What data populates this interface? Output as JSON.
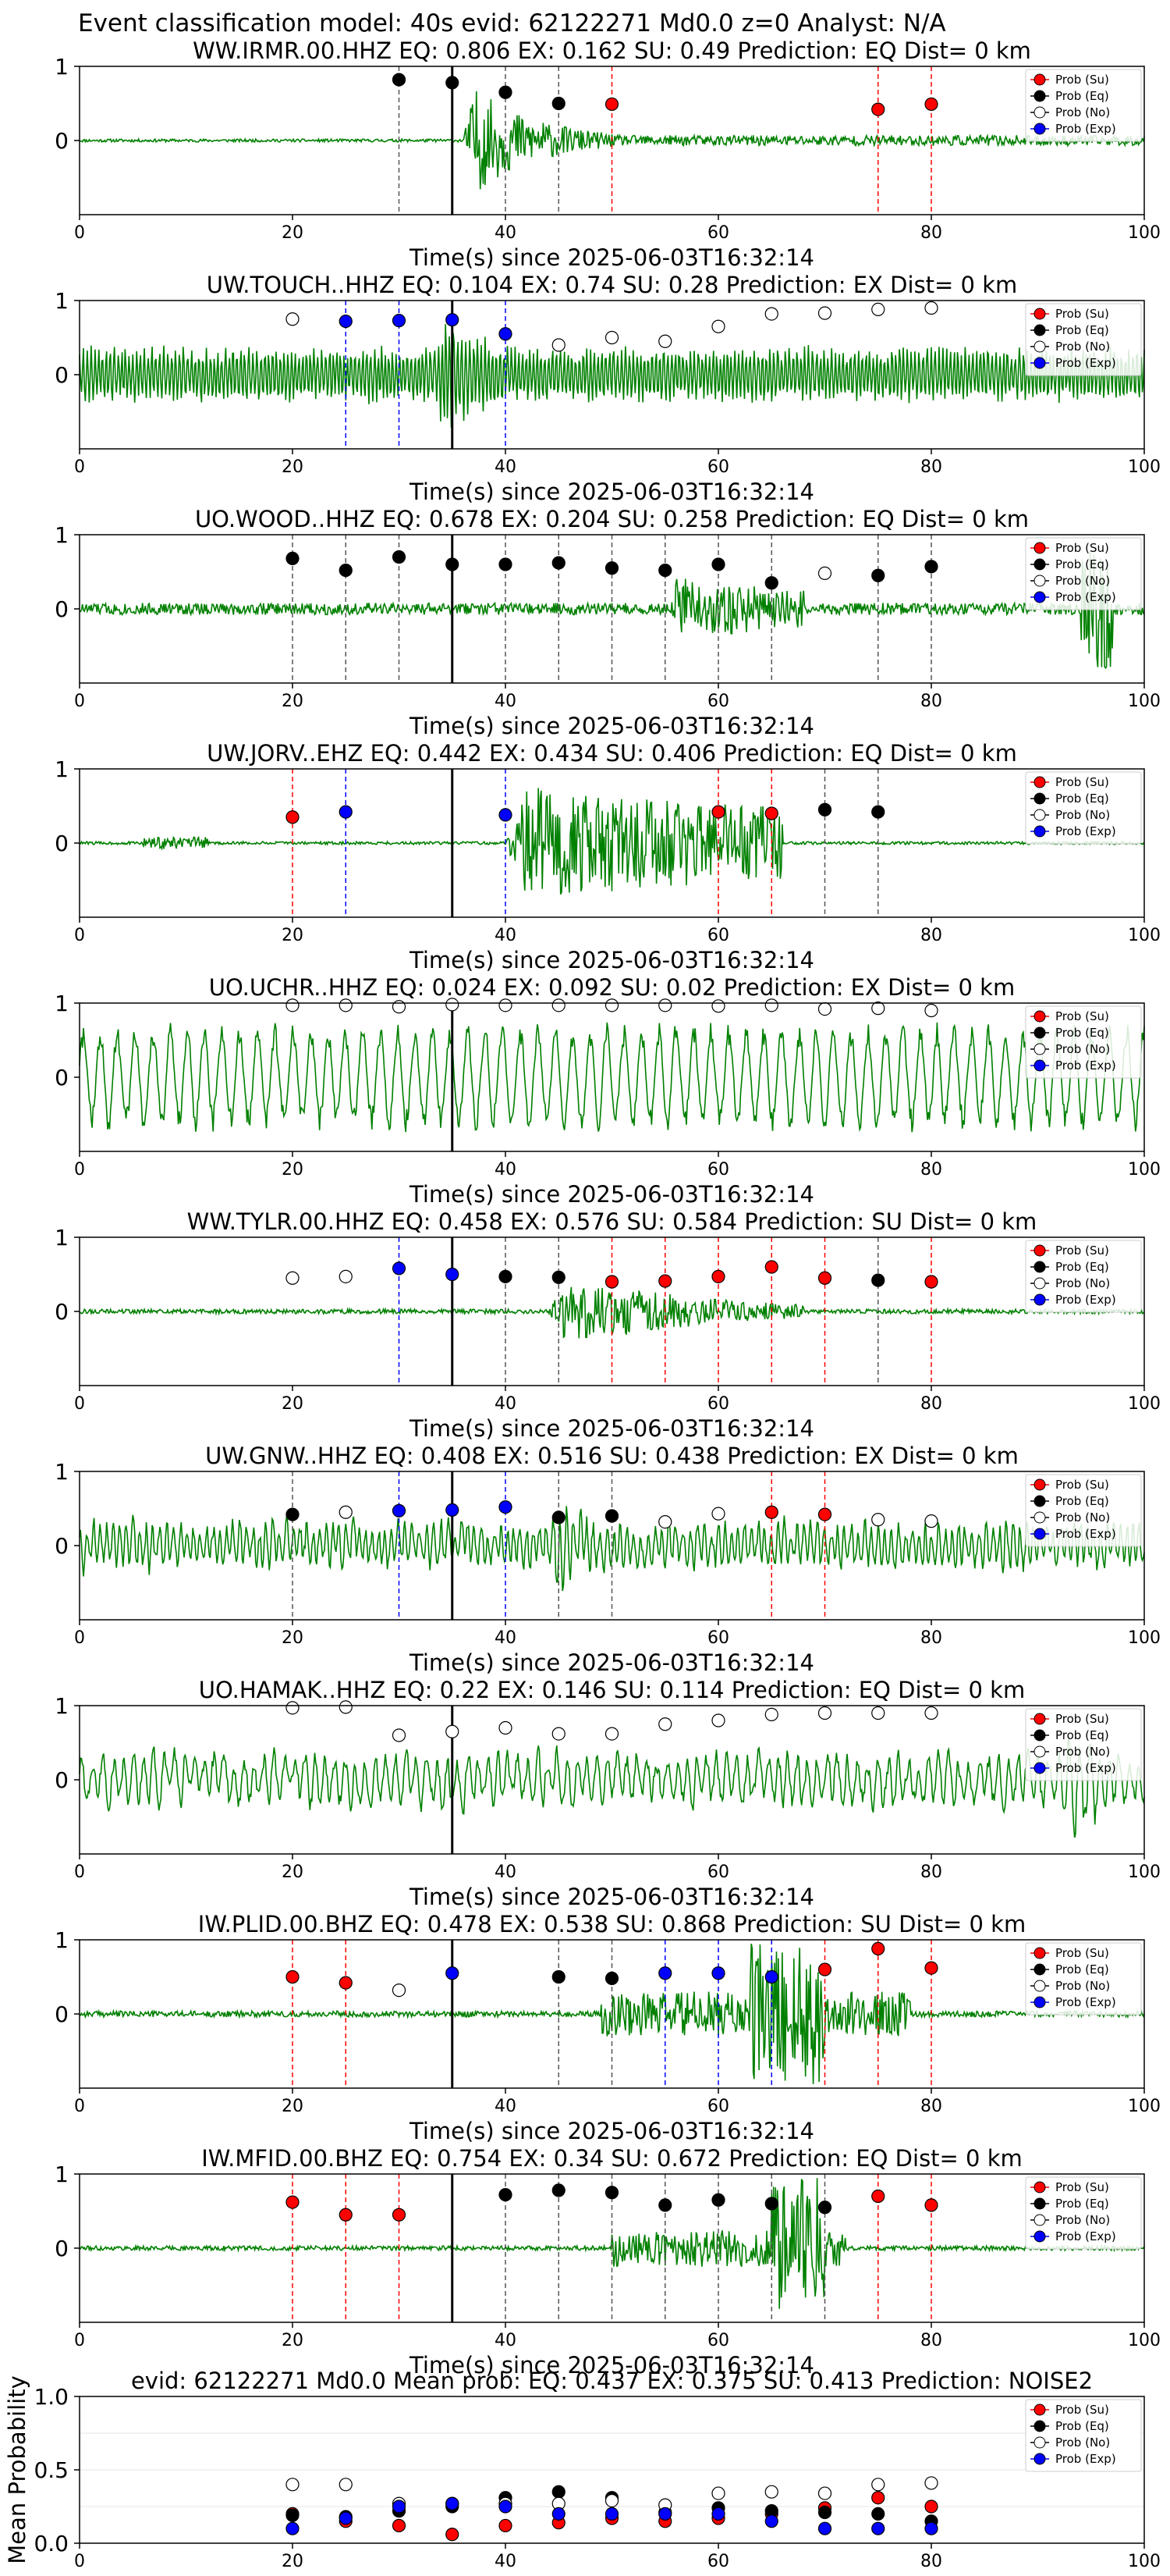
{
  "suptitle": "Event classification model: 40s evid: 62122271 Md0.0 z=0 Analyst: N/A",
  "colors": {
    "wave": "#008000",
    "su": "#ff0000",
    "eq": "#000000",
    "no": "#ffffff",
    "exp": "#0000ff",
    "su_line": "#ff0000",
    "eq_line": "#555555",
    "exp_line": "#0000ff",
    "origin_line": "#000000"
  },
  "legend": [
    "Prob (Su)",
    "Prob (Eq)",
    "Prob (No)",
    "Prob (Exp)"
  ],
  "chart_data": [
    {
      "type": "line",
      "kind": "waveform",
      "title": "WW.IRMR.00.HHZ   EQ: 0.806  EX: 0.162  SU: 0.49   Prediction: EQ    Dist= 0 km",
      "xlabel": "Time(s) since 2025-06-03T16:32:14",
      "ylabel": "",
      "xlim": [
        0,
        100
      ],
      "ylim": [
        -1,
        1
      ],
      "xticks": [
        0,
        20,
        40,
        60,
        80,
        100
      ],
      "yticks": [
        1,
        0
      ],
      "origin_time": 35,
      "waveform": {
        "seed": 11,
        "base": 0.02,
        "bursts": [
          [
            36,
            50,
            0.85,
            2.2
          ],
          [
            50,
            100,
            0.07,
            0
          ]
        ],
        "mode": "noise"
      },
      "points": [
        {
          "x": 30,
          "y": 0.82,
          "cls": "eq"
        },
        {
          "x": 35,
          "y": 0.78,
          "cls": "eq"
        },
        {
          "x": 40,
          "y": 0.65,
          "cls": "eq"
        },
        {
          "x": 45,
          "y": 0.5,
          "cls": "eq"
        },
        {
          "x": 50,
          "y": 0.49,
          "cls": "su"
        },
        {
          "x": 75,
          "y": 0.42,
          "cls": "su"
        },
        {
          "x": 80,
          "y": 0.49,
          "cls": "su"
        }
      ]
    },
    {
      "type": "line",
      "kind": "waveform",
      "title": "UW.TOUCH..HHZ   EQ: 0.104  EX: 0.74  SU: 0.28   Prediction: EX    Dist= 0 km",
      "xlabel": "Time(s) since 2025-06-03T16:32:14",
      "ylabel": "",
      "xlim": [
        0,
        100
      ],
      "ylim": [
        -1,
        1
      ],
      "xticks": [
        0,
        20,
        40,
        60,
        80,
        100
      ],
      "yticks": [
        1,
        0
      ],
      "origin_time": 35,
      "waveform": {
        "seed": 22,
        "base": 0.4,
        "bursts": [
          [
            33,
            44,
            0.95,
            1.2
          ]
        ],
        "mode": "osc",
        "freq": 1.6
      },
      "points": [
        {
          "x": 20,
          "y": 0.75,
          "cls": "no"
        },
        {
          "x": 25,
          "y": 0.72,
          "cls": "exp"
        },
        {
          "x": 30,
          "y": 0.73,
          "cls": "exp"
        },
        {
          "x": 35,
          "y": 0.74,
          "cls": "exp"
        },
        {
          "x": 40,
          "y": 0.55,
          "cls": "exp"
        },
        {
          "x": 45,
          "y": 0.4,
          "cls": "no"
        },
        {
          "x": 50,
          "y": 0.5,
          "cls": "no"
        },
        {
          "x": 55,
          "y": 0.45,
          "cls": "no"
        },
        {
          "x": 60,
          "y": 0.65,
          "cls": "no"
        },
        {
          "x": 65,
          "y": 0.82,
          "cls": "no"
        },
        {
          "x": 70,
          "y": 0.83,
          "cls": "no"
        },
        {
          "x": 75,
          "y": 0.88,
          "cls": "no"
        },
        {
          "x": 80,
          "y": 0.9,
          "cls": "no"
        }
      ]
    },
    {
      "type": "line",
      "kind": "waveform",
      "title": "UO.WOOD..HHZ   EQ: 0.678  EX: 0.204  SU: 0.258   Prediction: EQ    Dist= 0 km",
      "xlabel": "Time(s) since 2025-06-03T16:32:14",
      "ylabel": "",
      "xlim": [
        0,
        100
      ],
      "ylim": [
        -1,
        1
      ],
      "xticks": [
        0,
        20,
        40,
        60,
        80,
        100
      ],
      "yticks": [
        1,
        0
      ],
      "origin_time": 35,
      "waveform": {
        "seed": 33,
        "base": 0.08,
        "bursts": [
          [
            55,
            68,
            0.45,
            0.6
          ],
          [
            94,
            97,
            0.8,
            0
          ]
        ],
        "mode": "noise"
      },
      "points": [
        {
          "x": 20,
          "y": 0.68,
          "cls": "eq"
        },
        {
          "x": 25,
          "y": 0.52,
          "cls": "eq"
        },
        {
          "x": 30,
          "y": 0.7,
          "cls": "eq"
        },
        {
          "x": 35,
          "y": 0.6,
          "cls": "eq"
        },
        {
          "x": 40,
          "y": 0.6,
          "cls": "eq"
        },
        {
          "x": 45,
          "y": 0.62,
          "cls": "eq"
        },
        {
          "x": 50,
          "y": 0.55,
          "cls": "eq"
        },
        {
          "x": 55,
          "y": 0.52,
          "cls": "eq"
        },
        {
          "x": 60,
          "y": 0.6,
          "cls": "eq"
        },
        {
          "x": 65,
          "y": 0.35,
          "cls": "eq"
        },
        {
          "x": 70,
          "y": 0.48,
          "cls": "no"
        },
        {
          "x": 75,
          "y": 0.45,
          "cls": "eq"
        },
        {
          "x": 80,
          "y": 0.57,
          "cls": "eq"
        }
      ]
    },
    {
      "type": "line",
      "kind": "waveform",
      "title": "UW.JORV..EHZ   EQ: 0.442  EX: 0.434  SU: 0.406   Prediction: EQ    Dist= 0 km",
      "xlabel": "Time(s) since 2025-06-03T16:32:14",
      "ylabel": "",
      "xlim": [
        0,
        100
      ],
      "ylim": [
        -1,
        1
      ],
      "xticks": [
        0,
        20,
        40,
        60,
        80,
        100
      ],
      "yticks": [
        1,
        0
      ],
      "origin_time": 35,
      "waveform": {
        "seed": 44,
        "base": 0.02,
        "bursts": [
          [
            6,
            12,
            0.08,
            0
          ],
          [
            40,
            66,
            0.8,
            0.5
          ]
        ],
        "mode": "noise"
      },
      "points": [
        {
          "x": 20,
          "y": 0.35,
          "cls": "su"
        },
        {
          "x": 25,
          "y": 0.42,
          "cls": "exp"
        },
        {
          "x": 40,
          "y": 0.38,
          "cls": "exp"
        },
        {
          "x": 60,
          "y": 0.42,
          "cls": "su"
        },
        {
          "x": 65,
          "y": 0.4,
          "cls": "su"
        },
        {
          "x": 70,
          "y": 0.45,
          "cls": "eq"
        },
        {
          "x": 75,
          "y": 0.42,
          "cls": "eq"
        }
      ]
    },
    {
      "type": "line",
      "kind": "waveform",
      "title": "UO.UCHR..HHZ   EQ: 0.024  EX: 0.092  SU: 0.02   Prediction: EX    Dist= 0 km",
      "xlabel": "Time(s) since 2025-06-03T16:32:14",
      "ylabel": "",
      "xlim": [
        0,
        100
      ],
      "ylim": [
        -1,
        1
      ],
      "xticks": [
        0,
        20,
        40,
        60,
        80,
        100
      ],
      "yticks": [
        1,
        0
      ],
      "origin_time": 35,
      "waveform": {
        "seed": 55,
        "base": 0.75,
        "bursts": [],
        "mode": "osc",
        "freq": 0.35
      },
      "points": [
        {
          "x": 20,
          "y": 0.97,
          "cls": "no"
        },
        {
          "x": 25,
          "y": 0.97,
          "cls": "no"
        },
        {
          "x": 30,
          "y": 0.95,
          "cls": "no"
        },
        {
          "x": 35,
          "y": 0.98,
          "cls": "no"
        },
        {
          "x": 40,
          "y": 0.97,
          "cls": "no"
        },
        {
          "x": 45,
          "y": 0.97,
          "cls": "no"
        },
        {
          "x": 50,
          "y": 0.97,
          "cls": "no"
        },
        {
          "x": 55,
          "y": 0.97,
          "cls": "no"
        },
        {
          "x": 60,
          "y": 0.96,
          "cls": "no"
        },
        {
          "x": 65,
          "y": 0.97,
          "cls": "no"
        },
        {
          "x": 70,
          "y": 0.92,
          "cls": "no"
        },
        {
          "x": 75,
          "y": 0.93,
          "cls": "no"
        },
        {
          "x": 80,
          "y": 0.9,
          "cls": "no"
        }
      ]
    },
    {
      "type": "line",
      "kind": "waveform",
      "title": "WW.TYLR.00.HHZ   EQ: 0.458  EX: 0.576  SU: 0.584   Prediction: SU    Dist= 0 km",
      "xlabel": "Time(s) since 2025-06-03T16:32:14",
      "ylabel": "",
      "xlim": [
        0,
        100
      ],
      "ylim": [
        -1,
        1
      ],
      "xticks": [
        0,
        20,
        40,
        60,
        80,
        100
      ],
      "yticks": [
        1,
        0
      ],
      "origin_time": 35,
      "waveform": {
        "seed": 66,
        "base": 0.03,
        "bursts": [
          [
            44,
            68,
            0.55,
            1.8
          ]
        ],
        "mode": "noise"
      },
      "points": [
        {
          "x": 20,
          "y": 0.45,
          "cls": "no"
        },
        {
          "x": 25,
          "y": 0.47,
          "cls": "no"
        },
        {
          "x": 30,
          "y": 0.58,
          "cls": "exp"
        },
        {
          "x": 35,
          "y": 0.5,
          "cls": "exp"
        },
        {
          "x": 40,
          "y": 0.47,
          "cls": "eq"
        },
        {
          "x": 45,
          "y": 0.46,
          "cls": "eq"
        },
        {
          "x": 50,
          "y": 0.4,
          "cls": "su"
        },
        {
          "x": 55,
          "y": 0.41,
          "cls": "su"
        },
        {
          "x": 60,
          "y": 0.47,
          "cls": "su"
        },
        {
          "x": 65,
          "y": 0.6,
          "cls": "su"
        },
        {
          "x": 70,
          "y": 0.45,
          "cls": "su"
        },
        {
          "x": 75,
          "y": 0.42,
          "cls": "eq"
        },
        {
          "x": 80,
          "y": 0.4,
          "cls": "su"
        }
      ]
    },
    {
      "type": "line",
      "kind": "waveform",
      "title": "UW.GNW..HHZ   EQ: 0.408  EX: 0.516  SU: 0.438   Prediction: EX    Dist= 0 km",
      "xlabel": "Time(s) since 2025-06-03T16:32:14",
      "ylabel": "",
      "xlim": [
        0,
        100
      ],
      "ylim": [
        -1,
        1
      ],
      "xticks": [
        0,
        20,
        40,
        60,
        80,
        100
      ],
      "yticks": [
        1,
        0
      ],
      "origin_time": 35,
      "waveform": {
        "seed": 77,
        "base": 0.4,
        "bursts": [
          [
            44,
            50,
            0.85,
            1.0
          ]
        ],
        "mode": "mix",
        "freq": 0.9
      },
      "points": [
        {
          "x": 20,
          "y": 0.42,
          "cls": "eq"
        },
        {
          "x": 25,
          "y": 0.45,
          "cls": "no"
        },
        {
          "x": 30,
          "y": 0.47,
          "cls": "exp"
        },
        {
          "x": 35,
          "y": 0.48,
          "cls": "exp"
        },
        {
          "x": 40,
          "y": 0.52,
          "cls": "exp"
        },
        {
          "x": 45,
          "y": 0.38,
          "cls": "eq"
        },
        {
          "x": 50,
          "y": 0.4,
          "cls": "eq"
        },
        {
          "x": 55,
          "y": 0.32,
          "cls": "no"
        },
        {
          "x": 60,
          "y": 0.43,
          "cls": "no"
        },
        {
          "x": 65,
          "y": 0.45,
          "cls": "su"
        },
        {
          "x": 70,
          "y": 0.42,
          "cls": "su"
        },
        {
          "x": 75,
          "y": 0.35,
          "cls": "no"
        },
        {
          "x": 80,
          "y": 0.33,
          "cls": "no"
        }
      ]
    },
    {
      "type": "line",
      "kind": "waveform",
      "title": "UO.HAMAK..HHZ   EQ: 0.22  EX: 0.146  SU: 0.114   Prediction: EQ    Dist= 0 km",
      "xlabel": "Time(s) since 2025-06-03T16:32:14",
      "ylabel": "",
      "xlim": [
        0,
        100
      ],
      "ylim": [
        -1,
        1
      ],
      "xticks": [
        0,
        20,
        40,
        60,
        80,
        100
      ],
      "yticks": [
        1,
        0
      ],
      "origin_time": 35,
      "waveform": {
        "seed": 88,
        "base": 0.45,
        "bursts": [
          [
            92,
            96,
            0.9,
            0
          ]
        ],
        "mode": "mix",
        "freq": 0.6
      },
      "points": [
        {
          "x": 20,
          "y": 0.97,
          "cls": "no"
        },
        {
          "x": 25,
          "y": 0.98,
          "cls": "no"
        },
        {
          "x": 30,
          "y": 0.6,
          "cls": "no"
        },
        {
          "x": 35,
          "y": 0.65,
          "cls": "no"
        },
        {
          "x": 40,
          "y": 0.7,
          "cls": "no"
        },
        {
          "x": 45,
          "y": 0.62,
          "cls": "no"
        },
        {
          "x": 50,
          "y": 0.62,
          "cls": "no"
        },
        {
          "x": 55,
          "y": 0.75,
          "cls": "no"
        },
        {
          "x": 60,
          "y": 0.8,
          "cls": "no"
        },
        {
          "x": 65,
          "y": 0.88,
          "cls": "no"
        },
        {
          "x": 70,
          "y": 0.9,
          "cls": "no"
        },
        {
          "x": 75,
          "y": 0.9,
          "cls": "no"
        },
        {
          "x": 80,
          "y": 0.9,
          "cls": "no"
        }
      ]
    },
    {
      "type": "line",
      "kind": "waveform",
      "title": "IW.PLID.00.BHZ   EQ: 0.478  EX: 0.538  SU: 0.868   Prediction: SU    Dist= 0 km",
      "xlabel": "Time(s) since 2025-06-03T16:32:14",
      "ylabel": "",
      "xlim": [
        0,
        100
      ],
      "ylim": [
        -1,
        1
      ],
      "xticks": [
        0,
        20,
        40,
        60,
        80,
        100
      ],
      "yticks": [
        1,
        0
      ],
      "origin_time": 35,
      "waveform": {
        "seed": 99,
        "base": 0.04,
        "bursts": [
          [
            49,
            78,
            0.3,
            0
          ],
          [
            63,
            70,
            0.95,
            0
          ]
        ],
        "mode": "noise"
      },
      "points": [
        {
          "x": 20,
          "y": 0.5,
          "cls": "su"
        },
        {
          "x": 25,
          "y": 0.42,
          "cls": "su"
        },
        {
          "x": 30,
          "y": 0.32,
          "cls": "no"
        },
        {
          "x": 35,
          "y": 0.55,
          "cls": "exp"
        },
        {
          "x": 45,
          "y": 0.5,
          "cls": "eq"
        },
        {
          "x": 50,
          "y": 0.48,
          "cls": "eq"
        },
        {
          "x": 55,
          "y": 0.55,
          "cls": "exp"
        },
        {
          "x": 60,
          "y": 0.55,
          "cls": "exp"
        },
        {
          "x": 65,
          "y": 0.5,
          "cls": "exp"
        },
        {
          "x": 70,
          "y": 0.6,
          "cls": "su"
        },
        {
          "x": 75,
          "y": 0.88,
          "cls": "su"
        },
        {
          "x": 80,
          "y": 0.62,
          "cls": "su"
        }
      ]
    },
    {
      "type": "line",
      "kind": "waveform",
      "title": "IW.MFID.00.BHZ   EQ: 0.754  EX: 0.34  SU: 0.672   Prediction: EQ    Dist= 0 km",
      "xlabel": "Time(s) since 2025-06-03T16:32:14",
      "ylabel": "",
      "xlim": [
        0,
        100
      ],
      "ylim": [
        -1,
        1
      ],
      "xticks": [
        0,
        20,
        40,
        60,
        80,
        100
      ],
      "yticks": [
        1,
        0
      ],
      "origin_time": 35,
      "waveform": {
        "seed": 111,
        "base": 0.03,
        "bursts": [
          [
            50,
            72,
            0.25,
            0
          ],
          [
            65,
            70,
            0.95,
            0
          ]
        ],
        "mode": "noise"
      },
      "points": [
        {
          "x": 20,
          "y": 0.62,
          "cls": "su"
        },
        {
          "x": 25,
          "y": 0.45,
          "cls": "su"
        },
        {
          "x": 30,
          "y": 0.45,
          "cls": "su"
        },
        {
          "x": 40,
          "y": 0.72,
          "cls": "eq"
        },
        {
          "x": 45,
          "y": 0.78,
          "cls": "eq"
        },
        {
          "x": 50,
          "y": 0.75,
          "cls": "eq"
        },
        {
          "x": 55,
          "y": 0.58,
          "cls": "eq"
        },
        {
          "x": 60,
          "y": 0.65,
          "cls": "eq"
        },
        {
          "x": 65,
          "y": 0.6,
          "cls": "eq"
        },
        {
          "x": 70,
          "y": 0.55,
          "cls": "eq"
        },
        {
          "x": 75,
          "y": 0.7,
          "cls": "su"
        },
        {
          "x": 80,
          "y": 0.58,
          "cls": "su"
        }
      ]
    },
    {
      "type": "scatter",
      "kind": "mean",
      "title": "evid: 62122271   Md0.0   Mean prob:   EQ: 0.437  EX: 0.375  SU: 0.413   Prediction: NOISE2",
      "xlabel": "",
      "ylabel": "Mean Probability",
      "xlim": [
        0,
        100
      ],
      "ylim": [
        0,
        1
      ],
      "xticks": [
        0,
        20,
        40,
        60,
        80,
        100
      ],
      "yticks": [
        1.0,
        0.5,
        0.0
      ],
      "ytick_labels": [
        "1.0",
        "0.5",
        "0.0"
      ],
      "x": [
        20,
        25,
        30,
        35,
        40,
        45,
        50,
        55,
        60,
        65,
        70,
        75,
        80
      ],
      "series": [
        {
          "name": "Prob (Su)",
          "cls": "su",
          "values": [
            0.2,
            0.15,
            0.12,
            0.06,
            0.12,
            0.14,
            0.17,
            0.15,
            0.17,
            0.2,
            0.24,
            0.31,
            0.25
          ]
        },
        {
          "name": "Prob (Eq)",
          "cls": "eq",
          "values": [
            0.19,
            0.18,
            0.22,
            0.25,
            0.31,
            0.35,
            0.31,
            0.21,
            0.24,
            0.22,
            0.21,
            0.2,
            0.15
          ]
        },
        {
          "name": "Prob (No)",
          "cls": "no",
          "values": [
            0.4,
            0.4,
            0.27,
            0.27,
            0.27,
            0.27,
            0.29,
            0.26,
            0.34,
            0.35,
            0.34,
            0.4,
            0.41
          ]
        },
        {
          "name": "Prob (Exp)",
          "cls": "exp",
          "values": [
            0.1,
            0.17,
            0.25,
            0.27,
            0.25,
            0.2,
            0.2,
            0.2,
            0.2,
            0.15,
            0.1,
            0.1,
            0.1
          ]
        }
      ]
    }
  ]
}
